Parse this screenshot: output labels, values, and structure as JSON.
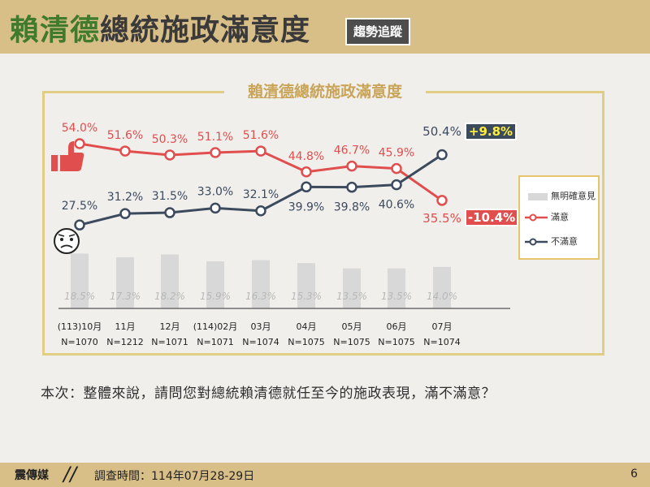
{
  "header": {
    "title_green": "賴清德",
    "title_dark": "總統施政滿意度",
    "badge": "趨勢追蹤"
  },
  "chart_title": {
    "underlined": "賴清德",
    "rest": "總統施政滿意度"
  },
  "colors": {
    "satisfied": "#e04e4e",
    "dissatisfied": "#3c4a5e",
    "no_opinion": "#d8d8d8",
    "accent_gold": "#e1cd84",
    "header_bg": "#d8be87"
  },
  "icons": {
    "satisfied": "thumbs-up-icon",
    "dissatisfied": "frowning-face-icon"
  },
  "chart_data": {
    "type": "line",
    "title": "賴清德總統施政滿意度",
    "categories": [
      "(113)10月",
      "11月",
      "12月",
      "(114)02月",
      "03月",
      "04月",
      "05月",
      "06月",
      "07月"
    ],
    "sample_sizes": [
      "N=1070",
      "N=1212",
      "N=1071",
      "N=1071",
      "N=1074",
      "N=1075",
      "N=1075",
      "N=1075",
      "N=1074"
    ],
    "series": [
      {
        "name": "滿意",
        "type": "line",
        "color": "#e04e4e",
        "values": [
          54.0,
          51.6,
          50.3,
          51.1,
          51.6,
          44.8,
          46.7,
          45.9,
          35.5
        ],
        "labels": [
          "54.0%",
          "51.6%",
          "50.3%",
          "51.1%",
          "51.6%",
          "44.8%",
          "46.7%",
          "45.9%",
          "35.5%"
        ]
      },
      {
        "name": "不滿意",
        "type": "line",
        "color": "#3c4a5e",
        "values": [
          27.5,
          31.2,
          31.5,
          33.0,
          32.1,
          39.9,
          39.8,
          40.6,
          50.4
        ],
        "labels": [
          "27.5%",
          "31.2%",
          "31.5%",
          "33.0%",
          "32.1%",
          "39.9%",
          "39.8%",
          "40.6%",
          "50.4%"
        ]
      },
      {
        "name": "無明確意見",
        "type": "bar",
        "color": "#d8d8d8",
        "values": [
          18.5,
          17.3,
          18.2,
          15.9,
          16.3,
          15.3,
          13.5,
          13.5,
          14.0
        ],
        "labels": [
          "18.5%",
          "17.3%",
          "18.2%",
          "15.9%",
          "16.3%",
          "15.3%",
          "13.5%",
          "13.5%",
          "14.0%"
        ]
      }
    ],
    "changes": {
      "dissatisfied": "+9.8%",
      "satisfied": "-10.4%"
    },
    "legend": [
      "無明確意見",
      "滿意",
      "不滿意"
    ],
    "legend_position": "right",
    "grid": false
  },
  "question": "本次：整體來說，請問您對總統賴清德就任至今的施政表現，滿不滿意？",
  "footer": {
    "source": "震傳媒",
    "date": "調查時間：114年07月28-29日",
    "page": "6"
  }
}
